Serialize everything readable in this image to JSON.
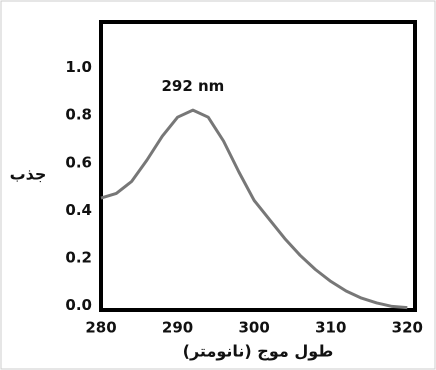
{
  "chart_data": {
    "type": "line",
    "x": [
      280,
      282,
      284,
      286,
      288,
      290,
      292,
      294,
      296,
      298,
      300,
      302,
      304,
      306,
      308,
      310,
      312,
      314,
      316,
      318,
      320
    ],
    "values": [
      0.46,
      0.48,
      0.53,
      0.62,
      0.72,
      0.8,
      0.83,
      0.8,
      0.7,
      0.57,
      0.45,
      0.37,
      0.29,
      0.22,
      0.16,
      0.11,
      0.07,
      0.04,
      0.02,
      0.005,
      0.0
    ],
    "color": "#777777",
    "xlim": [
      280,
      321
    ],
    "xticks": [
      280,
      290,
      300,
      310,
      320
    ],
    "ylim": [
      -0.01,
      1.2
    ],
    "yticks": [
      {
        "value": 0,
        "label": "0.0"
      },
      0.2,
      0.4,
      0.6,
      0.8,
      {
        "value": 1,
        "label": "1.0"
      }
    ],
    "annotation": "292 nm",
    "annotation_x": 292,
    "annotation_y": 0.93,
    "ylabel": "جذب",
    "xlabel": "طول موج (نانومتر)"
  }
}
